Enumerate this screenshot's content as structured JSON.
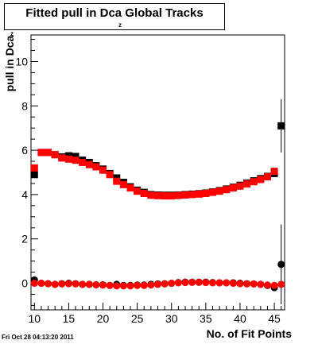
{
  "title": {
    "main": "Fitted pull in Dca Global Tracks",
    "sub": "z"
  },
  "ylabel": {
    "main": "pull in Dca",
    "sub": "z"
  },
  "xlabel": "No. of Fit Points",
  "timestamp": "Fri Oct 28 04:13:20 2011",
  "chart_data": {
    "type": "scatter",
    "xlim": [
      9.5,
      46.5
    ],
    "ylim": [
      -1.2,
      11.2
    ],
    "xticks": [
      "10",
      "15",
      "20",
      "25",
      "30",
      "35",
      "40",
      "45"
    ],
    "yticks": [
      "0",
      "2",
      "4",
      "6",
      "8",
      "10"
    ],
    "series": [
      {
        "marker": "square",
        "color": "#000000",
        "x": [
          10,
          11,
          12,
          13,
          14,
          15,
          16,
          17,
          18,
          19,
          20,
          21,
          22,
          23,
          24,
          25,
          26,
          27,
          28,
          29,
          30,
          31,
          32,
          33,
          34,
          35,
          36,
          37,
          38,
          39,
          40,
          41,
          42,
          43,
          44,
          45,
          46
        ],
        "y": [
          4.9,
          5.9,
          5.9,
          5.8,
          5.7,
          5.75,
          5.72,
          5.55,
          5.45,
          5.3,
          5.15,
          4.95,
          4.75,
          4.55,
          4.35,
          4.2,
          4.1,
          4.0,
          3.98,
          3.97,
          3.97,
          3.98,
          4.0,
          4.02,
          4.04,
          4.07,
          4.12,
          4.18,
          4.25,
          4.33,
          4.42,
          4.52,
          4.62,
          4.72,
          4.82,
          4.95,
          7.1
        ],
        "err_y": [
          0,
          0,
          0,
          0,
          0,
          0,
          0,
          0,
          0,
          0,
          0,
          0,
          0,
          0,
          0,
          0,
          0,
          0,
          0,
          0,
          0,
          0,
          0,
          0,
          0,
          0,
          0,
          0,
          0,
          0,
          0,
          0,
          0,
          0,
          0,
          0,
          1.2
        ]
      },
      {
        "marker": "square",
        "color": "#ff0000",
        "x": [
          10,
          11,
          12,
          13,
          14,
          15,
          16,
          17,
          18,
          19,
          20,
          21,
          22,
          23,
          24,
          25,
          26,
          27,
          28,
          29,
          30,
          31,
          32,
          33,
          34,
          35,
          36,
          37,
          38,
          39,
          40,
          41,
          42,
          43,
          44,
          45
        ],
        "y": [
          5.2,
          5.9,
          5.9,
          5.8,
          5.65,
          5.6,
          5.55,
          5.45,
          5.35,
          5.25,
          5.1,
          4.9,
          4.6,
          4.45,
          4.3,
          4.15,
          4.05,
          3.97,
          3.95,
          3.94,
          3.94,
          3.96,
          3.98,
          4.0,
          4.02,
          4.05,
          4.1,
          4.15,
          4.22,
          4.3,
          4.38,
          4.48,
          4.58,
          4.68,
          4.8,
          5.05
        ],
        "err_y": []
      },
      {
        "marker": "circle",
        "color": "#000000",
        "x": [
          10,
          11,
          12,
          13,
          14,
          15,
          16,
          17,
          18,
          19,
          20,
          21,
          22,
          23,
          24,
          25,
          26,
          27,
          28,
          29,
          30,
          31,
          32,
          33,
          34,
          35,
          36,
          37,
          38,
          39,
          40,
          41,
          42,
          43,
          44,
          45,
          46
        ],
        "y": [
          0.15,
          0.0,
          -0.02,
          -0.05,
          -0.02,
          0.0,
          -0.02,
          -0.05,
          -0.05,
          -0.07,
          -0.07,
          -0.1,
          -0.05,
          -0.1,
          -0.1,
          -0.08,
          -0.08,
          -0.05,
          -0.03,
          -0.02,
          0.0,
          0.03,
          0.05,
          0.05,
          0.05,
          0.05,
          0.03,
          0.02,
          0.02,
          0.02,
          0.0,
          -0.02,
          -0.03,
          -0.05,
          -0.1,
          -0.2,
          0.85
        ],
        "err_y": [
          0,
          0,
          0,
          0,
          0,
          0,
          0,
          0,
          0,
          0,
          0,
          0,
          0,
          0,
          0,
          0,
          0,
          0,
          0,
          0,
          0,
          0,
          0,
          0,
          0,
          0,
          0,
          0,
          0,
          0,
          0,
          0,
          0,
          0,
          0,
          0,
          1.8
        ]
      },
      {
        "marker": "circle",
        "color": "#ff0000",
        "x": [
          10,
          11,
          12,
          13,
          14,
          15,
          16,
          17,
          18,
          19,
          20,
          21,
          22,
          23,
          24,
          25,
          26,
          27,
          28,
          29,
          30,
          31,
          32,
          33,
          34,
          35,
          36,
          37,
          38,
          39,
          40,
          41,
          42,
          43,
          44,
          45,
          46
        ],
        "y": [
          0.0,
          0.0,
          -0.02,
          -0.05,
          -0.03,
          -0.02,
          -0.03,
          -0.05,
          -0.05,
          -0.07,
          -0.08,
          -0.1,
          -0.12,
          -0.12,
          -0.12,
          -0.1,
          -0.1,
          -0.08,
          -0.05,
          -0.03,
          0.0,
          0.02,
          0.03,
          0.04,
          0.04,
          0.03,
          0.02,
          0.02,
          0.02,
          0.0,
          -0.02,
          -0.03,
          -0.03,
          -0.05,
          -0.08,
          -0.1,
          -0.05
        ],
        "err_y": []
      }
    ]
  }
}
